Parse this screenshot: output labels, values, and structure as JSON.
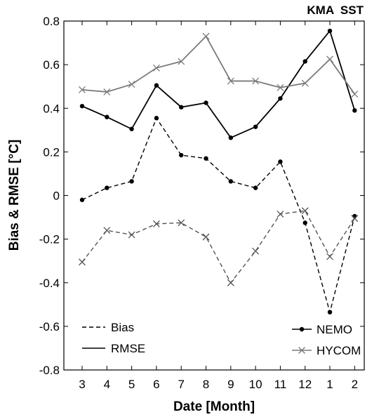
{
  "chart_data": {
    "type": "line",
    "title": "KMA  SST",
    "xlabel": "Date [Month]",
    "ylabel": "Bias & RMSE [°C]",
    "categories": [
      "3",
      "4",
      "5",
      "6",
      "7",
      "8",
      "9",
      "10",
      "11",
      "12",
      "1",
      "2"
    ],
    "ylim": [
      -0.8,
      0.8
    ],
    "yticks": [
      -0.8,
      -0.6,
      -0.4,
      -0.2,
      0,
      0.2,
      0.4,
      0.6,
      0.8
    ],
    "ytick_labels": [
      "-0.8",
      "-0.6",
      "-0.4",
      "-0.2",
      "0",
      "0.2",
      "0.4",
      "0.6",
      "0.8"
    ],
    "grid": false,
    "series": [
      {
        "name": "NEMO",
        "metric": "RMSE",
        "marker": "dot",
        "line": "solid",
        "color": "#000000",
        "values": [
          0.41,
          0.36,
          0.305,
          0.505,
          0.405,
          0.425,
          0.265,
          0.315,
          0.445,
          0.615,
          0.755,
          0.39
        ]
      },
      {
        "name": "HYCOM",
        "metric": "RMSE",
        "marker": "x",
        "line": "solid",
        "color": "#7a7a7a",
        "values": [
          0.485,
          0.475,
          0.51,
          0.585,
          0.615,
          0.73,
          0.525,
          0.525,
          0.495,
          0.515,
          0.625,
          0.465
        ]
      },
      {
        "name": "NEMO",
        "metric": "Bias",
        "marker": "dot",
        "line": "dashed",
        "color": "#000000",
        "values": [
          -0.02,
          0.035,
          0.065,
          0.355,
          0.185,
          0.17,
          0.065,
          0.035,
          0.155,
          -0.125,
          -0.535,
          -0.095
        ]
      },
      {
        "name": "HYCOM",
        "metric": "Bias",
        "marker": "x",
        "line": "dashed",
        "color": "#555555",
        "values": [
          -0.305,
          -0.16,
          -0.18,
          -0.13,
          -0.125,
          -0.19,
          -0.4,
          -0.255,
          -0.085,
          -0.07,
          -0.28,
          -0.105
        ]
      }
    ],
    "legend_line": {
      "position": "bottom-left",
      "entries": [
        "Bias",
        "RMSE"
      ]
    },
    "legend_model": {
      "position": "bottom-right",
      "entries": [
        "NEMO",
        "HYCOM"
      ]
    }
  }
}
